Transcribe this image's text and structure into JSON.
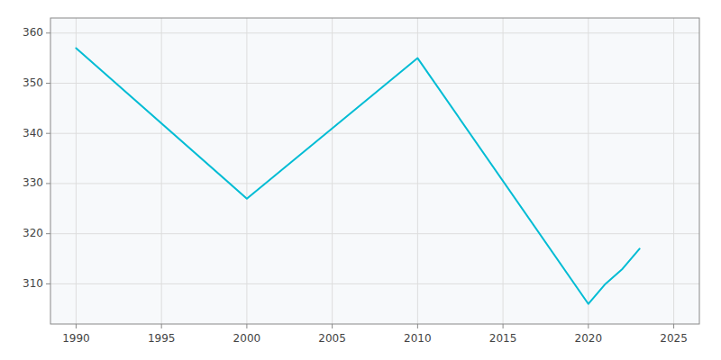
{
  "chart_data": {
    "type": "line",
    "x": [
      1990,
      2000,
      2010,
      2020,
      2021,
      2022,
      2023
    ],
    "values": [
      357,
      327,
      355,
      306,
      310,
      313,
      317
    ],
    "color": "#00BCD4",
    "xlim": [
      1988.5,
      2026.5
    ],
    "ylim": [
      302,
      363
    ],
    "xticks": [
      1990,
      1995,
      2000,
      2005,
      2010,
      2015,
      2020,
      2025
    ],
    "yticks": [
      310,
      320,
      330,
      340,
      350,
      360
    ],
    "grid": true
  }
}
